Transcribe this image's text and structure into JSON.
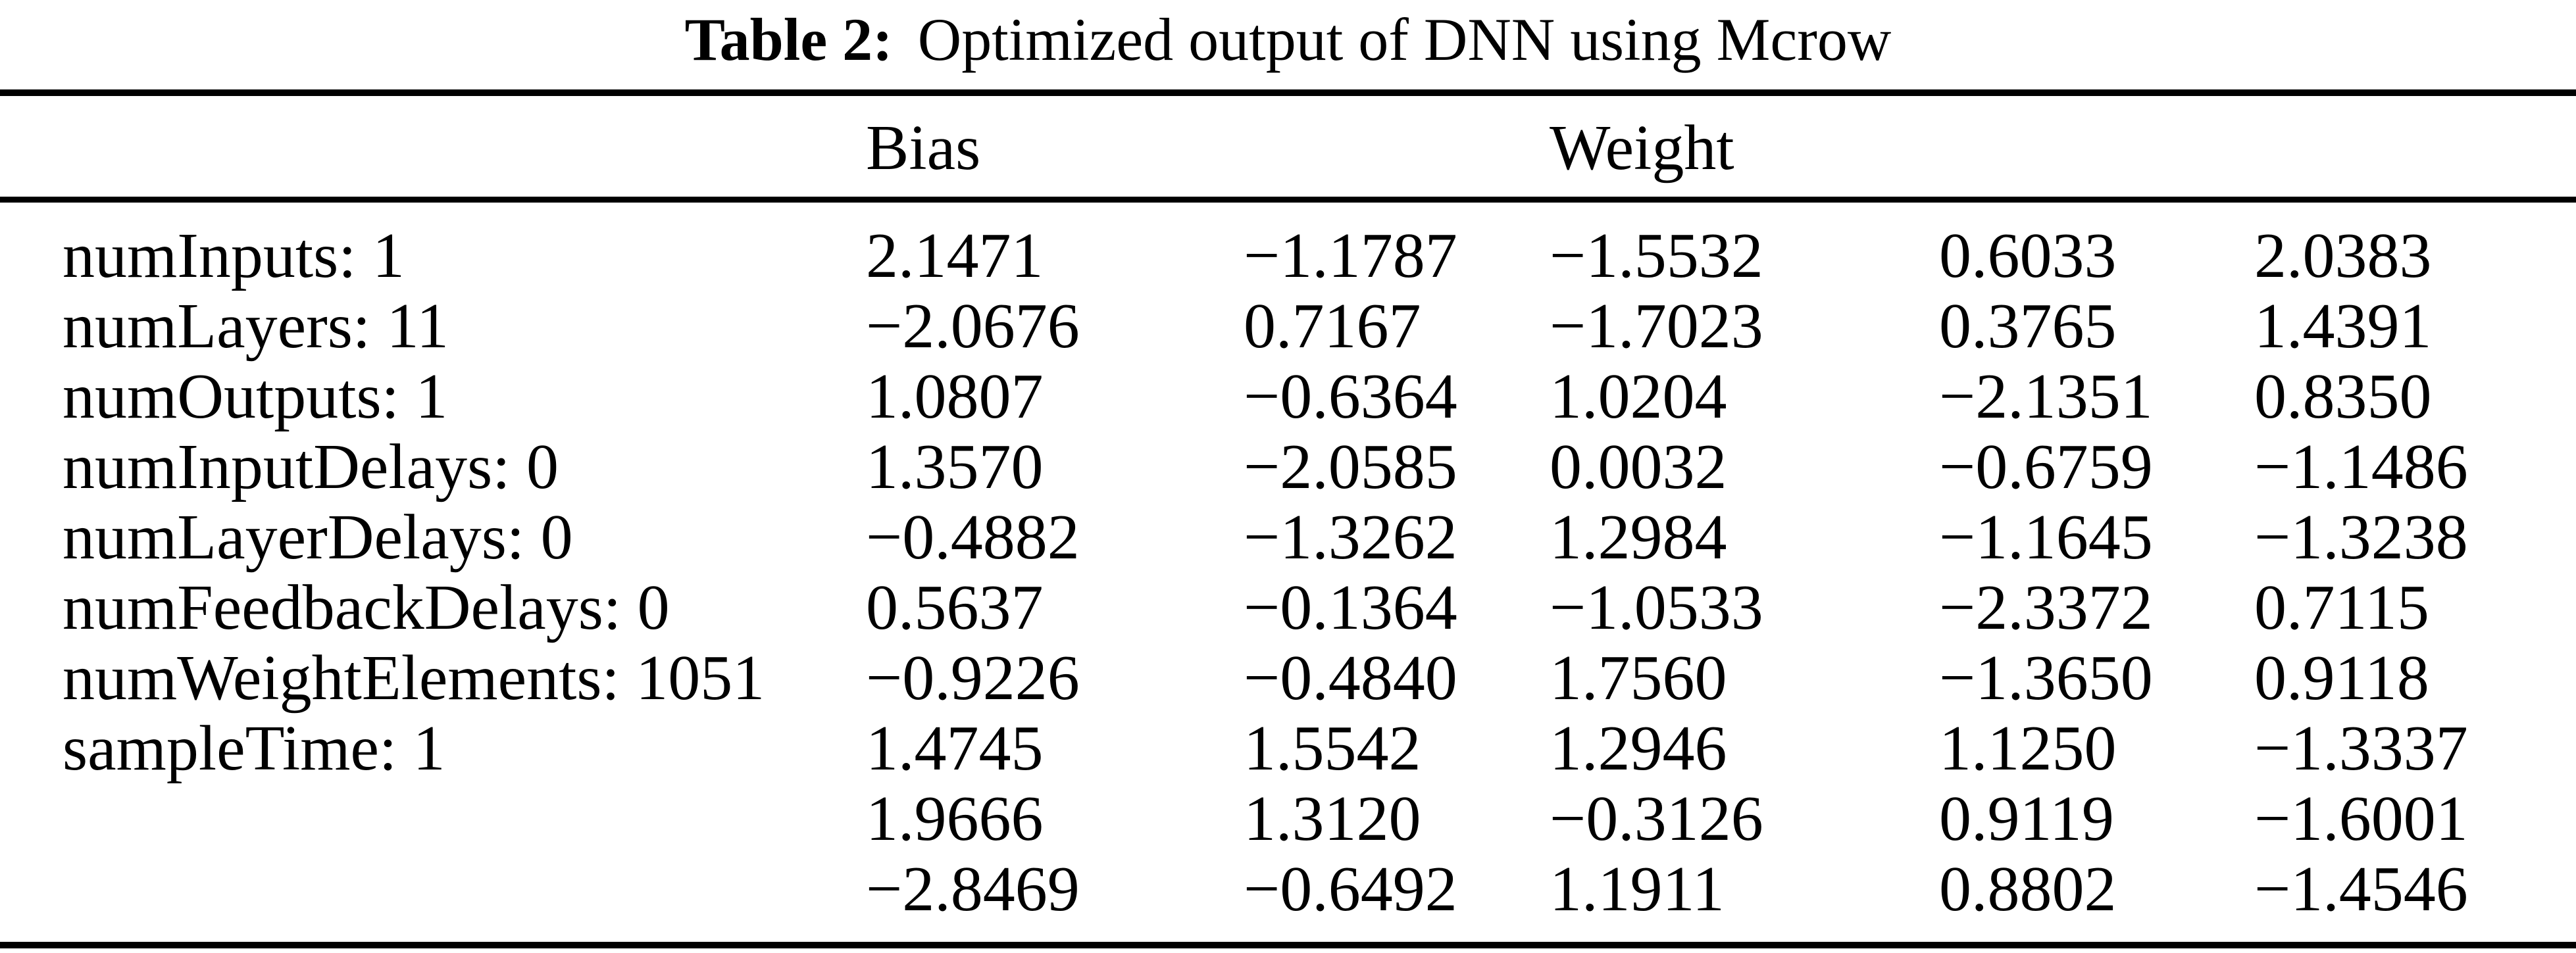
{
  "caption": {
    "label": "Table 2:",
    "text": "Optimized output of DNN using Mcrow"
  },
  "headers": {
    "bias": "Bias",
    "weight": "Weight"
  },
  "table": {
    "rows": [
      {
        "label": "numInputs: 1",
        "values": [
          "2.1471",
          "−1.1787",
          "−1.5532",
          "0.6033",
          "2.0383"
        ]
      },
      {
        "label": "numLayers: 11",
        "values": [
          "−2.0676",
          "0.7167",
          "−1.7023",
          "0.3765",
          "1.4391"
        ]
      },
      {
        "label": "numOutputs: 1",
        "values": [
          "1.0807",
          "−0.6364",
          "1.0204",
          "−2.1351",
          "0.8350"
        ]
      },
      {
        "label": "numInputDelays: 0",
        "values": [
          "1.3570",
          "−2.0585",
          "0.0032",
          "−0.6759",
          "−1.1486"
        ]
      },
      {
        "label": "numLayerDelays: 0",
        "values": [
          "−0.4882",
          "−1.3262",
          "1.2984",
          "−1.1645",
          "−1.3238"
        ]
      },
      {
        "label": "numFeedbackDelays: 0",
        "values": [
          "0.5637",
          "−0.1364",
          "−1.0533",
          "−2.3372",
          "0.7115"
        ]
      },
      {
        "label": "numWeightElements: 1051",
        "values": [
          "−0.9226",
          "−0.4840",
          "1.7560",
          "−1.3650",
          "0.9118"
        ]
      },
      {
        "label": "sampleTime: 1",
        "values": [
          "1.4745",
          "1.5542",
          "1.2946",
          "1.1250",
          "−1.3337"
        ]
      },
      {
        "label": "",
        "values": [
          "1.9666",
          "1.3120",
          "−0.3126",
          "0.9119",
          "−1.6001"
        ]
      },
      {
        "label": "",
        "values": [
          "−2.8469",
          "−0.6492",
          "1.1911",
          "0.8802",
          "−1.4546"
        ]
      }
    ]
  }
}
